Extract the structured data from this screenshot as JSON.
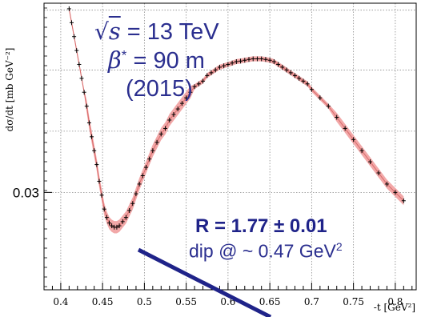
{
  "chart_data": {
    "type": "line",
    "ylabel": "dσ/dt [mb GeV⁻²]",
    "xlabel": "-t [GeV²]",
    "xlim": [
      0.38,
      0.825
    ],
    "ylim": [
      0.0265,
      0.0368
    ],
    "xticks": [
      0.4,
      0.45,
      0.5,
      0.55,
      0.6,
      0.65,
      0.7,
      0.75,
      0.8
    ],
    "xtick_labels": [
      "0.4",
      "0.45",
      "0.5",
      "0.55",
      "0.6",
      "0.65",
      "0.7",
      "0.75",
      "0.8"
    ],
    "yticks": [
      0.03
    ],
    "ytick_labels": [
      "0.03"
    ],
    "grid": true,
    "series": [
      {
        "values_x": [
          0.41,
          0.413,
          0.416,
          0.419,
          0.422,
          0.425,
          0.428,
          0.431,
          0.434,
          0.437,
          0.44,
          0.443,
          0.446,
          0.449,
          0.452,
          0.455,
          0.458,
          0.461,
          0.464,
          0.467,
          0.47,
          0.474,
          0.478,
          0.482,
          0.486,
          0.49,
          0.494,
          0.498,
          0.502,
          0.506,
          0.51,
          0.515,
          0.52,
          0.525,
          0.53,
          0.535,
          0.54,
          0.545,
          0.55,
          0.555,
          0.56,
          0.565,
          0.57,
          0.575,
          0.58,
          0.585,
          0.59,
          0.595,
          0.6,
          0.605,
          0.61,
          0.615,
          0.62,
          0.625,
          0.63,
          0.635,
          0.64,
          0.645,
          0.65,
          0.655,
          0.66,
          0.665,
          0.67,
          0.675,
          0.68,
          0.685,
          0.69,
          0.695,
          0.7,
          0.71,
          0.72,
          0.73,
          0.74,
          0.75,
          0.76,
          0.77,
          0.78,
          0.79,
          0.8,
          0.81
        ],
        "values_y": [
          0.0366,
          0.0361,
          0.0356,
          0.0351,
          0.0346,
          0.0341,
          0.0336,
          0.0331,
          0.0325,
          0.032,
          0.0315,
          0.031,
          0.0304,
          0.0299,
          0.0294,
          0.0291,
          0.0289,
          0.0288,
          0.02875,
          0.02875,
          0.0288,
          0.02895,
          0.0291,
          0.02935,
          0.0296,
          0.02995,
          0.0303,
          0.0306,
          0.0309,
          0.0312,
          0.0315,
          0.0318,
          0.0321,
          0.0323,
          0.0326,
          0.0328,
          0.033,
          0.0332,
          0.0334,
          0.0336,
          0.0338,
          0.0339,
          0.034,
          0.0342,
          0.0343,
          0.0344,
          0.0345,
          0.03455,
          0.0346,
          0.03465,
          0.0347,
          0.03472,
          0.03475,
          0.03478,
          0.0348,
          0.0348,
          0.0348,
          0.03478,
          0.03475,
          0.0347,
          0.0346,
          0.0345,
          0.0344,
          0.0343,
          0.0342,
          0.0341,
          0.034,
          0.0339,
          0.0337,
          0.0334,
          0.0331,
          0.0327,
          0.0323,
          0.0319,
          0.0315,
          0.0311,
          0.0307,
          0.0303,
          0.03,
          0.0297
        ]
      }
    ],
    "annotations": {
      "energy_prefix": "√",
      "energy_symbol": "s",
      "energy_value": " = 13 TeV",
      "beta_symbol": "β",
      "beta_sup": "*",
      "beta_value": "  = 90 m",
      "year": "(2015)",
      "r_label": "R = 1.77 ± 0.01",
      "dip_text": "dip @ ~ 0.47 GeV",
      "dip_sup": "2"
    },
    "colors": {
      "band": "#f2a8a8",
      "fit_line": "#d86a6a",
      "points": "#000000",
      "annotation": "#2b2f8f",
      "arrow": "#1f2389",
      "grid": "#8a8a8a"
    }
  }
}
